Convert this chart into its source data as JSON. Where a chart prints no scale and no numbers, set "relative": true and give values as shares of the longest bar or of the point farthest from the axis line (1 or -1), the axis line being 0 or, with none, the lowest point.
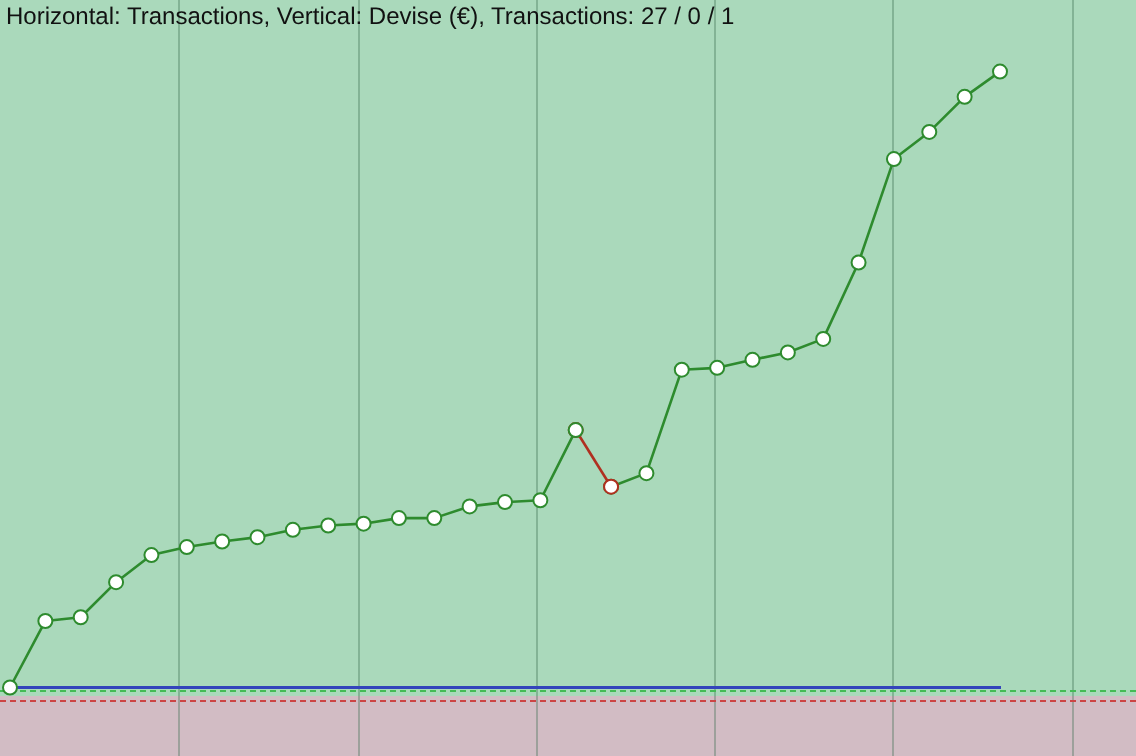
{
  "chart_data": {
    "type": "line",
    "title": "Horizontal: Transactions, Vertical: Devise (€), Transactions: 27 / 0 / 1",
    "relative": true,
    "grid": "x",
    "legend": false,
    "marker": "circle",
    "line_style": "solid",
    "categories": [
      null,
      null,
      null,
      null,
      null,
      null,
      null,
      null,
      null,
      null,
      null,
      null,
      null,
      null,
      null,
      null,
      null,
      null,
      null,
      null,
      null,
      null,
      null,
      null,
      null,
      null,
      null,
      null,
      null
    ],
    "series": [
      {
        "color": "#2e8b2e",
        "values": [
          0,
          0.108,
          0.114,
          0.171,
          0.215,
          0.228,
          0.237,
          0.244,
          0.256,
          0.263,
          0.266,
          0.275,
          0.275,
          0.294,
          0.301,
          0.304,
          0.418,
          null,
          null,
          null,
          null,
          null,
          null,
          null,
          null,
          null,
          null,
          null,
          null
        ]
      },
      {
        "color": "#b03020",
        "values": [
          null,
          null,
          null,
          null,
          null,
          null,
          null,
          null,
          null,
          null,
          null,
          null,
          null,
          null,
          null,
          null,
          0.418,
          0.326,
          null,
          null,
          null,
          null,
          null,
          null,
          null,
          null,
          null,
          null,
          null
        ]
      },
      {
        "color": "#2e8b2e",
        "values": [
          null,
          null,
          null,
          null,
          null,
          null,
          null,
          null,
          null,
          null,
          null,
          null,
          null,
          null,
          null,
          null,
          null,
          0.326,
          0.348,
          0.516,
          0.519,
          0.532,
          0.544,
          0.566,
          0.69,
          0.858,
          0.902,
          0.959,
          1
        ]
      }
    ]
  }
}
